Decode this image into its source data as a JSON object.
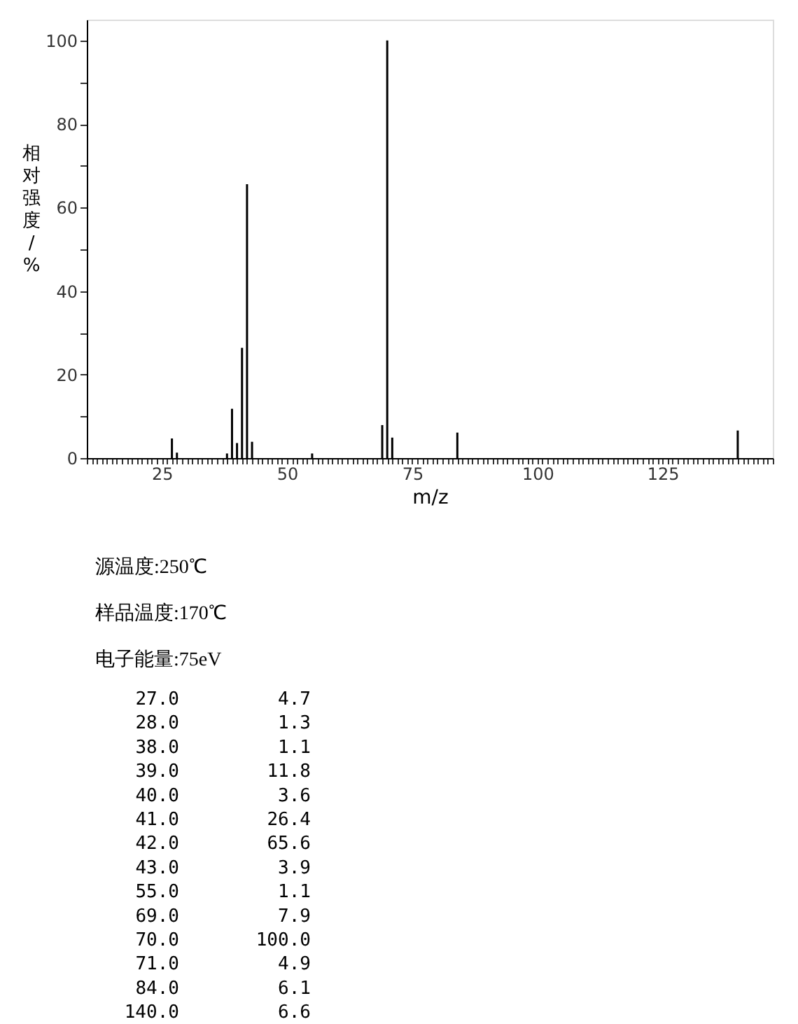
{
  "chart_data": {
    "type": "bar",
    "xlabel": "m/z",
    "ylabel": "相对强度/%",
    "x": [
      27.0,
      28.0,
      38.0,
      39.0,
      40.0,
      41.0,
      42.0,
      43.0,
      55.0,
      69.0,
      70.0,
      71.0,
      84.0,
      140.0
    ],
    "series": [
      {
        "color": "#000000",
        "values": [
          4.7,
          1.3,
          1.1,
          11.8,
          3.6,
          26.4,
          65.6,
          3.9,
          1.1,
          7.9,
          100.0,
          4.9,
          6.1,
          6.6
        ]
      }
    ],
    "xlim": [
      10,
      147
    ],
    "ylim": [
      0,
      105
    ],
    "xticks": [
      {
        "value": 10,
        "label": null
      },
      {
        "value": 11,
        "label": null
      },
      {
        "value": 12,
        "label": null
      },
      {
        "value": 13,
        "label": null
      },
      {
        "value": 14,
        "label": null
      },
      {
        "value": 15,
        "label": null
      },
      {
        "value": 16,
        "label": null
      },
      {
        "value": 17,
        "label": null
      },
      {
        "value": 18,
        "label": null
      },
      {
        "value": 19,
        "label": null
      },
      {
        "value": 20,
        "label": null
      },
      {
        "value": 21,
        "label": null
      },
      {
        "value": 22,
        "label": null
      },
      {
        "value": 23,
        "label": null
      },
      {
        "value": 24,
        "label": null
      },
      25,
      {
        "value": 26,
        "label": null
      },
      {
        "value": 27,
        "label": null
      },
      {
        "value": 28,
        "label": null
      },
      {
        "value": 29,
        "label": null
      },
      {
        "value": 30,
        "label": null
      },
      {
        "value": 31,
        "label": null
      },
      {
        "value": 32,
        "label": null
      },
      {
        "value": 33,
        "label": null
      },
      {
        "value": 34,
        "label": null
      },
      {
        "value": 35,
        "label": null
      },
      {
        "value": 36,
        "label": null
      },
      {
        "value": 37,
        "label": null
      },
      {
        "value": 38,
        "label": null
      },
      {
        "value": 39,
        "label": null
      },
      {
        "value": 40,
        "label": null
      },
      {
        "value": 41,
        "label": null
      },
      {
        "value": 42,
        "label": null
      },
      {
        "value": 43,
        "label": null
      },
      {
        "value": 44,
        "label": null
      },
      {
        "value": 45,
        "label": null
      },
      {
        "value": 46,
        "label": null
      },
      {
        "value": 47,
        "label": null
      },
      {
        "value": 48,
        "label": null
      },
      {
        "value": 49,
        "label": null
      },
      50,
      {
        "value": 51,
        "label": null
      },
      {
        "value": 52,
        "label": null
      },
      {
        "value": 53,
        "label": null
      },
      {
        "value": 54,
        "label": null
      },
      {
        "value": 55,
        "label": null
      },
      {
        "value": 56,
        "label": null
      },
      {
        "value": 57,
        "label": null
      },
      {
        "value": 58,
        "label": null
      },
      {
        "value": 59,
        "label": null
      },
      {
        "value": 60,
        "label": null
      },
      {
        "value": 61,
        "label": null
      },
      {
        "value": 62,
        "label": null
      },
      {
        "value": 63,
        "label": null
      },
      {
        "value": 64,
        "label": null
      },
      {
        "value": 65,
        "label": null
      },
      {
        "value": 66,
        "label": null
      },
      {
        "value": 67,
        "label": null
      },
      {
        "value": 68,
        "label": null
      },
      {
        "value": 69,
        "label": null
      },
      {
        "value": 70,
        "label": null
      },
      {
        "value": 71,
        "label": null
      },
      {
        "value": 72,
        "label": null
      },
      {
        "value": 73,
        "label": null
      },
      {
        "value": 74,
        "label": null
      },
      75,
      {
        "value": 76,
        "label": null
      },
      {
        "value": 77,
        "label": null
      },
      {
        "value": 78,
        "label": null
      },
      {
        "value": 79,
        "label": null
      },
      {
        "value": 80,
        "label": null
      },
      {
        "value": 81,
        "label": null
      },
      {
        "value": 82,
        "label": null
      },
      {
        "value": 83,
        "label": null
      },
      {
        "value": 84,
        "label": null
      },
      {
        "value": 85,
        "label": null
      },
      {
        "value": 86,
        "label": null
      },
      {
        "value": 87,
        "label": null
      },
      {
        "value": 88,
        "label": null
      },
      {
        "value": 89,
        "label": null
      },
      {
        "value": 90,
        "label": null
      },
      {
        "value": 91,
        "label": null
      },
      {
        "value": 92,
        "label": null
      },
      {
        "value": 93,
        "label": null
      },
      {
        "value": 94,
        "label": null
      },
      {
        "value": 95,
        "label": null
      },
      {
        "value": 96,
        "label": null
      },
      {
        "value": 97,
        "label": null
      },
      {
        "value": 98,
        "label": null
      },
      {
        "value": 99,
        "label": null
      },
      100,
      {
        "value": 101,
        "label": null
      },
      {
        "value": 102,
        "label": null
      },
      {
        "value": 103,
        "label": null
      },
      {
        "value": 104,
        "label": null
      },
      {
        "value": 105,
        "label": null
      },
      {
        "value": 106,
        "label": null
      },
      {
        "value": 107,
        "label": null
      },
      {
        "value": 108,
        "label": null
      },
      {
        "value": 109,
        "label": null
      },
      {
        "value": 110,
        "label": null
      },
      {
        "value": 111,
        "label": null
      },
      {
        "value": 112,
        "label": null
      },
      {
        "value": 113,
        "label": null
      },
      {
        "value": 114,
        "label": null
      },
      {
        "value": 115,
        "label": null
      },
      {
        "value": 116,
        "label": null
      },
      {
        "value": 117,
        "label": null
      },
      {
        "value": 118,
        "label": null
      },
      {
        "value": 119,
        "label": null
      },
      {
        "value": 120,
        "label": null
      },
      {
        "value": 121,
        "label": null
      },
      {
        "value": 122,
        "label": null
      },
      {
        "value": 123,
        "label": null
      },
      {
        "value": 124,
        "label": null
      },
      125,
      {
        "value": 126,
        "label": null
      },
      {
        "value": 127,
        "label": null
      },
      {
        "value": 128,
        "label": null
      },
      {
        "value": 129,
        "label": null
      },
      {
        "value": 130,
        "label": null
      },
      {
        "value": 131,
        "label": null
      },
      {
        "value": 132,
        "label": null
      },
      {
        "value": 133,
        "label": null
      },
      {
        "value": 134,
        "label": null
      },
      {
        "value": 135,
        "label": null
      },
      {
        "value": 136,
        "label": null
      },
      {
        "value": 137,
        "label": null
      },
      {
        "value": 138,
        "label": null
      },
      {
        "value": 139,
        "label": null
      },
      {
        "value": 140,
        "label": null
      },
      {
        "value": 141,
        "label": null
      },
      {
        "value": 142,
        "label": null
      },
      {
        "value": 143,
        "label": null
      },
      {
        "value": 144,
        "label": null
      },
      {
        "value": 145,
        "label": null
      },
      {
        "value": 146,
        "label": null
      },
      {
        "value": 147,
        "label": null
      }
    ],
    "yticks": [
      0,
      {
        "value": 10,
        "label": null
      },
      20,
      {
        "value": 30,
        "label": null
      },
      40,
      {
        "value": 50,
        "label": null
      },
      60,
      {
        "value": 70,
        "label": null
      },
      80,
      {
        "value": 90,
        "label": null
      },
      100
    ],
    "grid": false,
    "annotations": [
      "源温度:250℃",
      "样品温度:170℃",
      "电子能量:75eV",
      "27.0 4.7",
      "28.0 1.3",
      "38.0 1.1",
      "39.0 11.8",
      "40.0 3.6",
      "41.0 26.4",
      "42.0 65.6",
      "43.0 3.9",
      "55.0 1.1",
      "69.0 7.9",
      "70.0 100.0",
      "71.0 4.9",
      "84.0 6.1",
      "140.0 6.6"
    ]
  }
}
